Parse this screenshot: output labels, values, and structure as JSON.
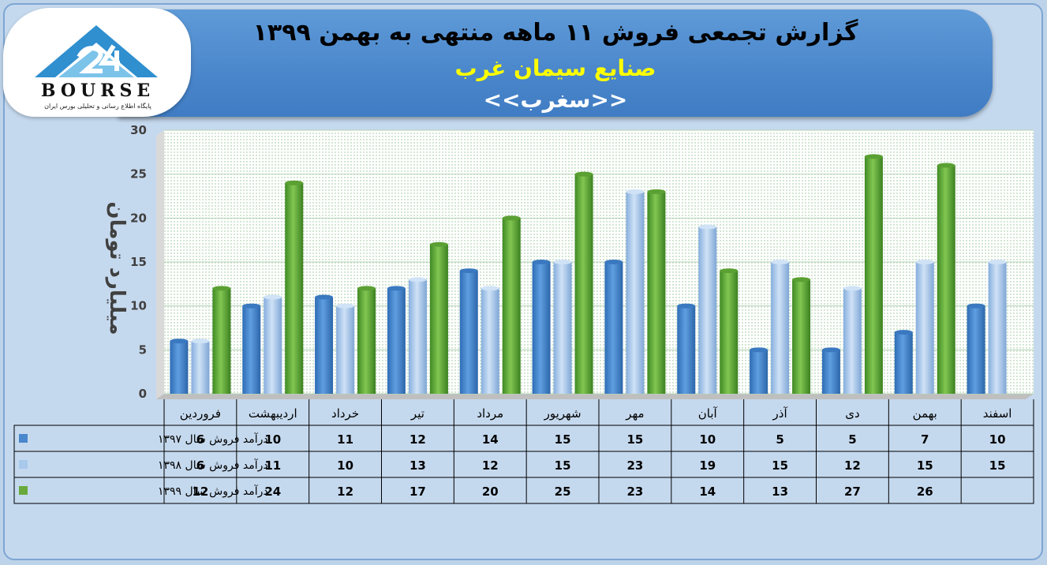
{
  "header": {
    "title": "گزارش تجمعی فروش ۱۱ ماهه منتهی به بهمن ۱۳۹۹",
    "subtitle": "صنایع سیمان غرب",
    "symbol": "<<سغرب>>"
  },
  "logo": {
    "text": "BOURSE",
    "tagline": "پایگاه اطلاع رسانی و تحلیلی بورس ایران"
  },
  "colors": {
    "series_1397": "#4a87cc",
    "series_1398": "#a8c8ec",
    "series_1399": "#6aaa3c",
    "background": "#c5d9ee",
    "header": "#4a86cb"
  },
  "chart_data": {
    "type": "bar",
    "ylabel": "میلیارد تومان",
    "ylim": [
      0,
      30
    ],
    "yticks": [
      0,
      5,
      10,
      15,
      20,
      25,
      30
    ],
    "grid": true,
    "legend": "data-table-left",
    "categories": [
      "فروردین",
      "اردیبهشت",
      "خرداد",
      "تیر",
      "مرداد",
      "شهریور",
      "مهر",
      "آبان",
      "آذر",
      "دی",
      "بهمن",
      "اسفند"
    ],
    "series": [
      {
        "name": "درآمد فروش سال ۱۳۹۷",
        "values": [
          6,
          10,
          11,
          12,
          14,
          15,
          15,
          10,
          5,
          5,
          7,
          10
        ]
      },
      {
        "name": "درآمد فروش سال ۱۳۹۸",
        "values": [
          6,
          11,
          10,
          13,
          12,
          15,
          23,
          19,
          15,
          12,
          15,
          15
        ]
      },
      {
        "name": "درآمد فروش سال ۱۳۹۹",
        "values": [
          12,
          24,
          12,
          17,
          20,
          25,
          23,
          14,
          13,
          27,
          26,
          null
        ]
      }
    ]
  }
}
